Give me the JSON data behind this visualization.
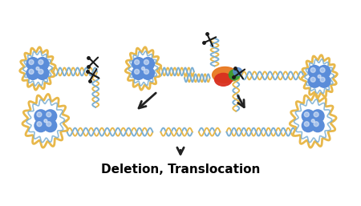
{
  "title": "Deletion, Translocation",
  "title_fontsize": 11,
  "title_fontweight": "bold",
  "bg_color": "#ffffff",
  "dna_color_gold": "#E8B84B",
  "dna_color_blue": "#7BAFD4",
  "chromosome_color": "#5B8DD9",
  "chromosome_outline_gold": "#E8B84B",
  "chromosome_outline_blue": "#7BAFD4",
  "arrow_color": "#222222",
  "scissors_color": "#222222",
  "protein_colors": [
    "#E87820",
    "#D93020",
    "#30A030",
    "#5588CC"
  ],
  "figsize": [
    4.5,
    2.57
  ],
  "dpi": 100
}
